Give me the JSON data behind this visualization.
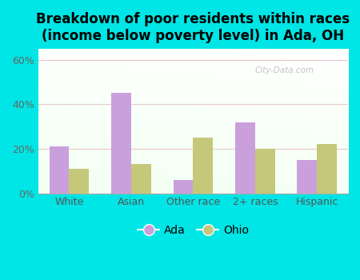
{
  "title": "Breakdown of poor residents within races\n(income below poverty level) in Ada, OH",
  "categories": [
    "White",
    "Asian",
    "Other race",
    "2+ races",
    "Hispanic"
  ],
  "ada_values": [
    21,
    45,
    6,
    32,
    15
  ],
  "ohio_values": [
    11,
    13,
    25,
    20,
    22
  ],
  "ada_color": "#c9a0dc",
  "ohio_color": "#c5c878",
  "background_outer": "#00e5e5",
  "ylim": [
    0,
    65
  ],
  "yticks": [
    0,
    20,
    40,
    60
  ],
  "ytick_labels": [
    "0%",
    "20%",
    "40%",
    "60%"
  ],
  "bar_width": 0.32,
  "legend_labels": [
    "Ada",
    "Ohio"
  ],
  "title_fontsize": 12,
  "tick_fontsize": 9,
  "legend_fontsize": 10,
  "grid_color": "#dddddd",
  "watermark": "City-Data.com"
}
